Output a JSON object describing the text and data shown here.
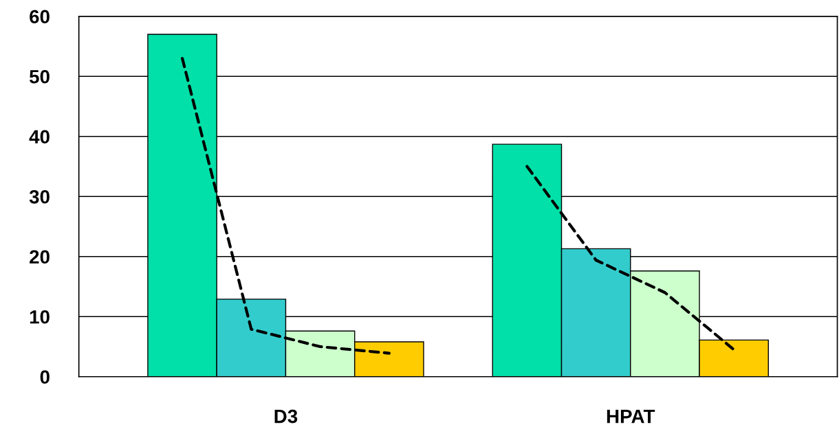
{
  "chart_data": {
    "type": "bar",
    "categories": [
      null,
      null,
      null,
      null,
      null,
      null,
      null,
      null,
      null,
      null,
      null
    ],
    "series": [
      {
        "values": [
          null,
          57,
          12.9,
          7.6,
          5.8,
          null,
          38.7,
          21.3,
          17.6,
          6.1,
          null
        ],
        "colors": [
          null,
          "#00e0a8",
          "#33cccc",
          "#ccffcc",
          "#ffcc00",
          null,
          "#00e0a8",
          "#33cccc",
          "#ccffcc",
          "#ffcc00",
          null
        ]
      },
      {
        "type": "line",
        "color": "#000000",
        "line_style": "dashed",
        "values": [
          null,
          53,
          7.9,
          5,
          3.9,
          null,
          null,
          null,
          null,
          null,
          null
        ]
      },
      {
        "type": "line",
        "color": "#000000",
        "line_style": "dashed",
        "values": [
          null,
          null,
          null,
          null,
          null,
          null,
          35,
          19.4,
          14,
          4.5,
          null
        ]
      }
    ],
    "annotations": [
      "D3",
      "HPAT"
    ],
    "ylim": [
      0,
      60
    ],
    "yticks": [
      0,
      10,
      20,
      30,
      40,
      50,
      60
    ],
    "grid": "y",
    "legend": false
  }
}
